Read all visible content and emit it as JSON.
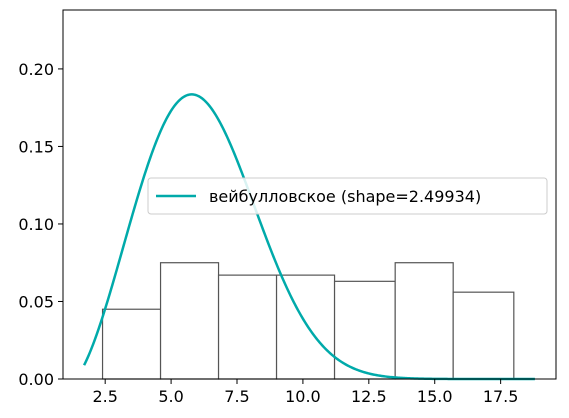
{
  "chart_data": {
    "type": "bar",
    "histogram": {
      "bin_edges": [
        2.4,
        4.6,
        6.8,
        9.0,
        11.2,
        13.5,
        15.7,
        18.0
      ],
      "densities": [
        0.045,
        0.075,
        0.067,
        0.067,
        0.063,
        0.075,
        0.056
      ],
      "edge_color": "#555555",
      "fill_color": "#ffffff"
    },
    "curve": {
      "name": "вейбулловское (shape=2.49934)",
      "distribution": "weibull",
      "shape": 2.49934,
      "loc": 1.3,
      "scale": 5.5,
      "x_range": [
        1.7,
        18.8
      ],
      "color": "#00aaaa"
    },
    "xlim": [
      0.9,
      19.6
    ],
    "ylim": [
      0.0,
      0.238
    ],
    "x_ticks": [
      2.5,
      5.0,
      7.5,
      10.0,
      12.5,
      15.0,
      17.5
    ],
    "x_tick_labels": [
      "2.5",
      "5.0",
      "7.5",
      "10.0",
      "12.5",
      "15.0",
      "17.5"
    ],
    "y_ticks": [
      0.0,
      0.05,
      0.1,
      0.15,
      0.2
    ],
    "y_tick_labels": [
      "0.00",
      "0.05",
      "0.10",
      "0.15",
      "0.20"
    ],
    "title": "",
    "xlabel": "",
    "ylabel": "",
    "grid": false,
    "legend": "center-right"
  }
}
